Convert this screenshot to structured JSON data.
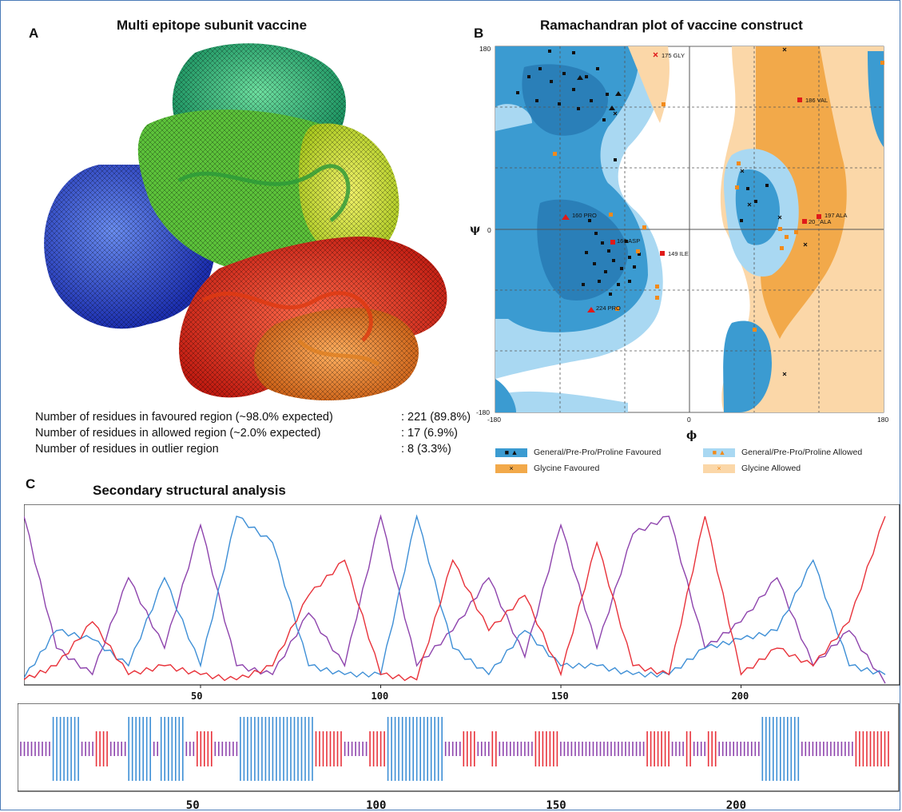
{
  "panels": {
    "a": {
      "letter": "A",
      "title": "Multi epitope subunit vaccine"
    },
    "b": {
      "letter": "B",
      "title": "Ramachandran plot of vaccine construct"
    },
    "c": {
      "letter": "C",
      "title": "Secondary structural analysis"
    }
  },
  "stats": [
    {
      "label": "Number of residues in favoured region (~98.0% expected)",
      "value": ": 221  (89.8%)"
    },
    {
      "label": "Number of residues in allowed region (~2.0% expected)",
      "value": ": 17  (6.9%)"
    },
    {
      "label": "Number of residues in outlier region",
      "value": ": 8  (3.3%)"
    }
  ],
  "ramachandran": {
    "x_label": "ϕ",
    "y_label": "ψ",
    "x_ticks": [
      "-180",
      "0",
      "180"
    ],
    "y_ticks": [
      "180",
      "0",
      "-180"
    ],
    "annotations": [
      "175 GLY",
      "186 VAL",
      "160 PRO",
      "166 ASP",
      "149 ILE",
      "224 PRO",
      "197 ALA",
      "20_ ALA"
    ]
  },
  "legend": [
    {
      "label": "General/Pre-Pro/Proline Favoured",
      "color": "#3b9bd1",
      "marks": "■ ▲"
    },
    {
      "label": "General/Pre-Pro/Proline Allowed",
      "color": "#a9d8f2",
      "marks": "■ ▲"
    },
    {
      "label": "Glycine Favoured",
      "color": "#f2a94a",
      "marks": "×"
    },
    {
      "label": "Glycine Allowed",
      "color": "#fbd7a8",
      "marks": "×"
    }
  ],
  "secondary": {
    "x_ticks": [
      "50",
      "100",
      "150",
      "200"
    ],
    "colors": {
      "helix": "#3e8fd6",
      "strand": "#e8323a",
      "coil": "#8e44ad"
    }
  },
  "chart_data": {
    "type": "line",
    "x": [
      1,
      10,
      20,
      30,
      40,
      50,
      60,
      70,
      80,
      90,
      100,
      110,
      120,
      130,
      140,
      150,
      160,
      170,
      180,
      190,
      200,
      210,
      220,
      230,
      240
    ],
    "series": [
      {
        "values": [
          0.95,
          0.2,
          0.05,
          0.6,
          0.2,
          0.9,
          0.1,
          0.05,
          0.4,
          0.1,
          0.95,
          0.1,
          0.3,
          0.6,
          0.15,
          0.9,
          0.2,
          0.85,
          0.95,
          0.2,
          0.35,
          0.6,
          0.1,
          0.3,
          0.0
        ]
      },
      {
        "values": [
          0.03,
          0.3,
          0.25,
          0.1,
          0.6,
          0.1,
          0.95,
          0.8,
          0.1,
          0.05,
          0.05,
          0.95,
          0.2,
          0.05,
          0.3,
          0.1,
          0.1,
          0.05,
          0.05,
          0.2,
          0.25,
          0.3,
          0.7,
          0.1,
          0.05
        ]
      },
      {
        "values": [
          0.02,
          0.1,
          0.35,
          0.05,
          0.1,
          0.05,
          0.02,
          0.1,
          0.5,
          0.7,
          0.05,
          0.02,
          0.7,
          0.3,
          0.5,
          0.05,
          0.8,
          0.1,
          0.05,
          0.95,
          0.05,
          0.2,
          0.1,
          0.35,
          0.95
        ]
      }
    ],
    "xlim": [
      1,
      244
    ],
    "ylim": [
      0,
      1
    ],
    "segments": [
      {
        "type": "coil",
        "start": 1,
        "end": 9
      },
      {
        "type": "helix",
        "start": 10,
        "end": 17
      },
      {
        "type": "coil",
        "start": 18,
        "end": 21
      },
      {
        "type": "strand",
        "start": 22,
        "end": 25
      },
      {
        "type": "coil",
        "start": 26,
        "end": 30
      },
      {
        "type": "helix",
        "start": 31,
        "end": 37
      },
      {
        "type": "coil",
        "start": 38,
        "end": 39
      },
      {
        "type": "helix",
        "start": 40,
        "end": 46
      },
      {
        "type": "coil",
        "start": 47,
        "end": 49
      },
      {
        "type": "strand",
        "start": 50,
        "end": 54
      },
      {
        "type": "coil",
        "start": 55,
        "end": 61
      },
      {
        "type": "helix",
        "start": 62,
        "end": 82
      },
      {
        "type": "strand",
        "start": 83,
        "end": 90
      },
      {
        "type": "coil",
        "start": 91,
        "end": 97
      },
      {
        "type": "strand",
        "start": 98,
        "end": 102
      },
      {
        "type": "helix",
        "start": 103,
        "end": 118
      },
      {
        "type": "coil",
        "start": 119,
        "end": 123
      },
      {
        "type": "strand",
        "start": 124,
        "end": 127
      },
      {
        "type": "coil",
        "start": 128,
        "end": 131
      },
      {
        "type": "strand",
        "start": 132,
        "end": 133
      },
      {
        "type": "coil",
        "start": 134,
        "end": 143
      },
      {
        "type": "strand",
        "start": 144,
        "end": 150
      },
      {
        "type": "coil",
        "start": 151,
        "end": 174
      },
      {
        "type": "strand",
        "start": 175,
        "end": 181
      },
      {
        "type": "coil",
        "start": 182,
        "end": 185
      },
      {
        "type": "strand",
        "start": 186,
        "end": 187
      },
      {
        "type": "coil",
        "start": 188,
        "end": 191
      },
      {
        "type": "strand",
        "start": 192,
        "end": 194
      },
      {
        "type": "coil",
        "start": 195,
        "end": 206
      },
      {
        "type": "helix",
        "start": 207,
        "end": 217
      },
      {
        "type": "coil",
        "start": 218,
        "end": 232
      },
      {
        "type": "strand",
        "start": 233,
        "end": 242
      }
    ]
  }
}
